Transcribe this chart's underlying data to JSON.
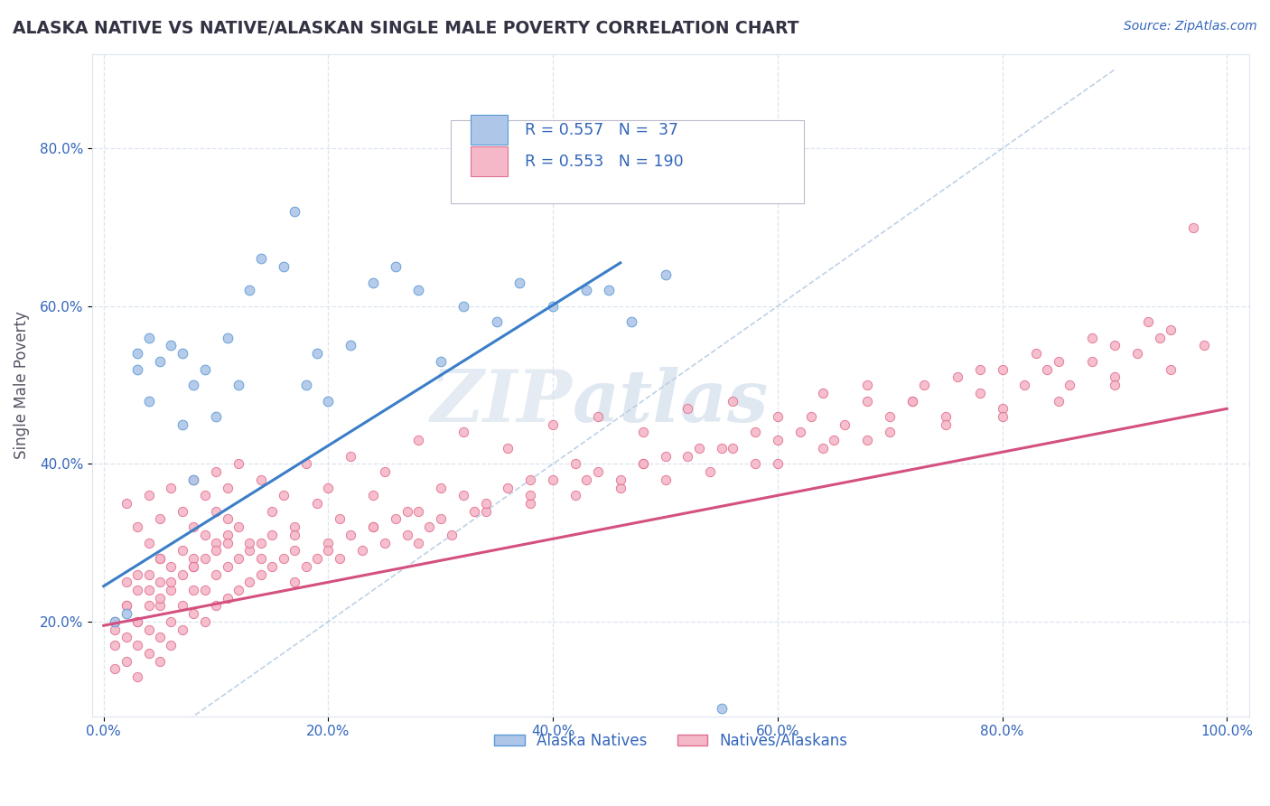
{
  "title": "ALASKA NATIVE VS NATIVE/ALASKAN SINGLE MALE POVERTY CORRELATION CHART",
  "source_text": "Source: ZipAtlas.com",
  "ylabel": "Single Male Poverty",
  "xlim": [
    -0.01,
    1.02
  ],
  "ylim": [
    0.08,
    0.92
  ],
  "x_ticks": [
    0.0,
    0.2,
    0.4,
    0.6,
    0.8,
    1.0
  ],
  "x_tick_labels": [
    "0.0%",
    "20.0%",
    "40.0%",
    "60.0%",
    "80.0%",
    "100.0%"
  ],
  "y_ticks": [
    0.2,
    0.4,
    0.6,
    0.8
  ],
  "y_tick_labels": [
    "20.0%",
    "40.0%",
    "60.0%",
    "80.0%"
  ],
  "blue_R": 0.557,
  "blue_N": 37,
  "pink_R": 0.553,
  "pink_N": 190,
  "blue_fill_color": "#aec6e8",
  "pink_fill_color": "#f5b8c8",
  "blue_edge_color": "#5b9bd5",
  "pink_edge_color": "#e07090",
  "blue_line_color": "#3a7ec8",
  "pink_line_color": "#d45080",
  "diagonal_line_color": "#b8cce4",
  "text_color": "#3366bb",
  "label_color": "#555566",
  "title_color": "#333344",
  "background_color": "#ffffff",
  "grid_color": "#dde5f0",
  "blue_line_x0": 0.0,
  "blue_line_y0": 0.245,
  "blue_line_x1": 0.46,
  "blue_line_y1": 0.655,
  "pink_line_x0": 0.0,
  "pink_line_y0": 0.195,
  "pink_line_x1": 1.0,
  "pink_line_y1": 0.47,
  "blue_x": [
    0.01,
    0.02,
    0.03,
    0.03,
    0.04,
    0.04,
    0.05,
    0.06,
    0.07,
    0.07,
    0.08,
    0.08,
    0.09,
    0.1,
    0.11,
    0.12,
    0.13,
    0.14,
    0.16,
    0.17,
    0.18,
    0.19,
    0.2,
    0.22,
    0.24,
    0.26,
    0.28,
    0.3,
    0.32,
    0.35,
    0.37,
    0.4,
    0.43,
    0.45,
    0.47,
    0.5,
    0.55
  ],
  "blue_y": [
    0.2,
    0.21,
    0.52,
    0.54,
    0.48,
    0.56,
    0.53,
    0.55,
    0.45,
    0.54,
    0.38,
    0.5,
    0.52,
    0.46,
    0.56,
    0.5,
    0.62,
    0.66,
    0.65,
    0.72,
    0.5,
    0.54,
    0.48,
    0.55,
    0.63,
    0.65,
    0.62,
    0.53,
    0.6,
    0.58,
    0.63,
    0.6,
    0.62,
    0.62,
    0.58,
    0.64,
    0.09
  ],
  "pink_x": [
    0.01,
    0.01,
    0.01,
    0.02,
    0.02,
    0.02,
    0.02,
    0.03,
    0.03,
    0.03,
    0.03,
    0.04,
    0.04,
    0.04,
    0.04,
    0.04,
    0.05,
    0.05,
    0.05,
    0.05,
    0.05,
    0.06,
    0.06,
    0.06,
    0.06,
    0.07,
    0.07,
    0.07,
    0.08,
    0.08,
    0.08,
    0.08,
    0.09,
    0.09,
    0.09,
    0.1,
    0.1,
    0.1,
    0.1,
    0.11,
    0.11,
    0.11,
    0.12,
    0.12,
    0.12,
    0.13,
    0.13,
    0.14,
    0.14,
    0.15,
    0.15,
    0.16,
    0.17,
    0.17,
    0.18,
    0.19,
    0.2,
    0.21,
    0.22,
    0.23,
    0.24,
    0.25,
    0.26,
    0.27,
    0.28,
    0.29,
    0.3,
    0.31,
    0.32,
    0.34,
    0.36,
    0.38,
    0.4,
    0.42,
    0.44,
    0.46,
    0.48,
    0.5,
    0.52,
    0.54,
    0.56,
    0.58,
    0.6,
    0.62,
    0.64,
    0.66,
    0.68,
    0.7,
    0.72,
    0.75,
    0.78,
    0.8,
    0.82,
    0.84,
    0.86,
    0.88,
    0.9,
    0.92,
    0.94,
    0.97,
    0.02,
    0.03,
    0.04,
    0.05,
    0.06,
    0.07,
    0.08,
    0.09,
    0.1,
    0.11,
    0.12,
    0.14,
    0.16,
    0.18,
    0.2,
    0.22,
    0.25,
    0.28,
    0.32,
    0.36,
    0.4,
    0.44,
    0.48,
    0.52,
    0.56,
    0.6,
    0.64,
    0.68,
    0.72,
    0.76,
    0.8,
    0.85,
    0.9,
    0.95,
    0.01,
    0.02,
    0.03,
    0.04,
    0.05,
    0.06,
    0.07,
    0.08,
    0.09,
    0.1,
    0.11,
    0.13,
    0.15,
    0.17,
    0.19,
    0.21,
    0.24,
    0.27,
    0.3,
    0.34,
    0.38,
    0.42,
    0.46,
    0.5,
    0.55,
    0.6,
    0.65,
    0.7,
    0.75,
    0.8,
    0.85,
    0.9,
    0.95,
    0.98,
    0.03,
    0.05,
    0.08,
    0.11,
    0.14,
    0.17,
    0.2,
    0.24,
    0.28,
    0.33,
    0.38,
    0.43,
    0.48,
    0.53,
    0.58,
    0.63,
    0.68,
    0.73,
    0.78,
    0.83,
    0.88,
    0.93
  ],
  "pink_y": [
    0.14,
    0.17,
    0.2,
    0.15,
    0.18,
    0.22,
    0.25,
    0.13,
    0.17,
    0.2,
    0.24,
    0.16,
    0.19,
    0.22,
    0.26,
    0.3,
    0.15,
    0.18,
    0.22,
    0.25,
    0.28,
    0.17,
    0.2,
    0.24,
    0.27,
    0.19,
    0.22,
    0.26,
    0.21,
    0.24,
    0.28,
    0.32,
    0.2,
    0.24,
    0.28,
    0.22,
    0.26,
    0.3,
    0.34,
    0.23,
    0.27,
    0.31,
    0.24,
    0.28,
    0.32,
    0.25,
    0.29,
    0.26,
    0.3,
    0.27,
    0.31,
    0.28,
    0.25,
    0.29,
    0.27,
    0.28,
    0.3,
    0.28,
    0.31,
    0.29,
    0.32,
    0.3,
    0.33,
    0.31,
    0.34,
    0.32,
    0.33,
    0.31,
    0.36,
    0.34,
    0.37,
    0.35,
    0.38,
    0.36,
    0.39,
    0.37,
    0.4,
    0.38,
    0.41,
    0.39,
    0.42,
    0.4,
    0.43,
    0.44,
    0.42,
    0.45,
    0.43,
    0.46,
    0.48,
    0.46,
    0.49,
    0.47,
    0.5,
    0.52,
    0.5,
    0.53,
    0.51,
    0.54,
    0.56,
    0.7,
    0.35,
    0.32,
    0.36,
    0.33,
    0.37,
    0.34,
    0.38,
    0.36,
    0.39,
    0.37,
    0.4,
    0.38,
    0.36,
    0.4,
    0.37,
    0.41,
    0.39,
    0.43,
    0.44,
    0.42,
    0.45,
    0.46,
    0.44,
    0.47,
    0.48,
    0.46,
    0.49,
    0.5,
    0.48,
    0.51,
    0.52,
    0.53,
    0.55,
    0.57,
    0.19,
    0.22,
    0.26,
    0.24,
    0.28,
    0.25,
    0.29,
    0.27,
    0.31,
    0.29,
    0.33,
    0.3,
    0.34,
    0.32,
    0.35,
    0.33,
    0.36,
    0.34,
    0.37,
    0.35,
    0.38,
    0.4,
    0.38,
    0.41,
    0.42,
    0.4,
    0.43,
    0.44,
    0.45,
    0.46,
    0.48,
    0.5,
    0.52,
    0.55,
    0.2,
    0.23,
    0.27,
    0.3,
    0.28,
    0.31,
    0.29,
    0.32,
    0.3,
    0.34,
    0.36,
    0.38,
    0.4,
    0.42,
    0.44,
    0.46,
    0.48,
    0.5,
    0.52,
    0.54,
    0.56,
    0.58
  ]
}
